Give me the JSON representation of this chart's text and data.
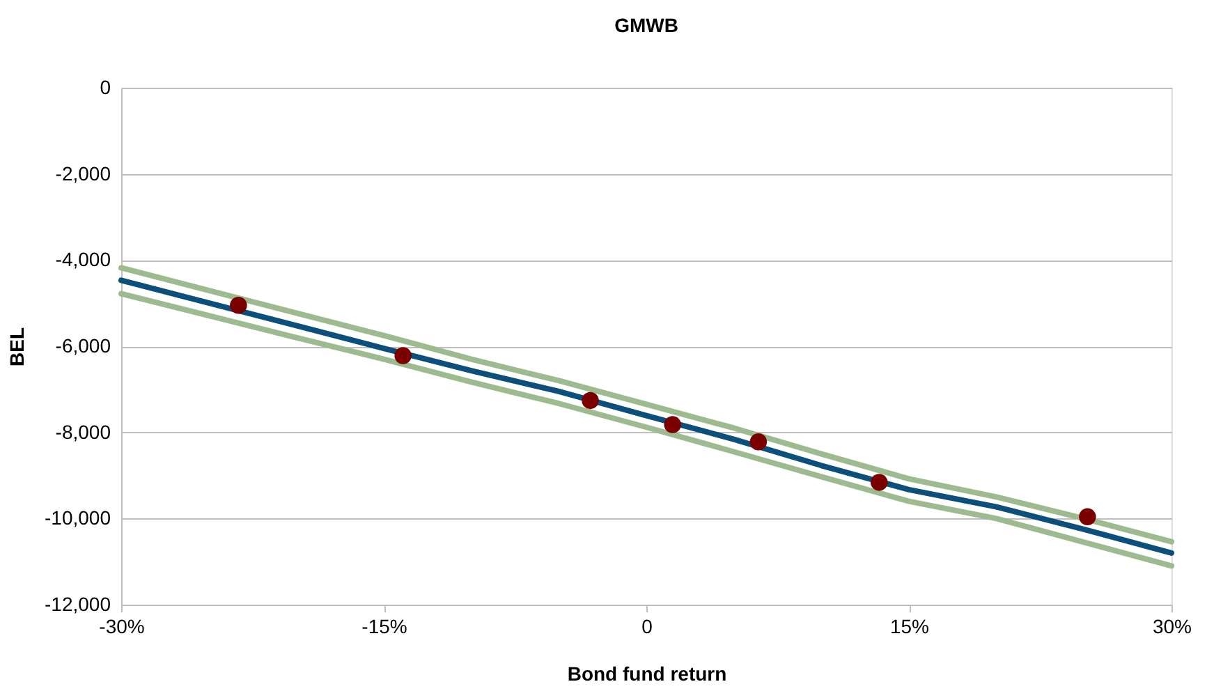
{
  "chart_data": {
    "type": "line",
    "title": "GMWB",
    "xlabel": "Bond fund return",
    "ylabel": "BEL",
    "xlim": [
      -30,
      30
    ],
    "xticks": [
      {
        "value": -30,
        "label": "-30%"
      },
      {
        "value": -15,
        "label": "-15%"
      },
      0,
      {
        "value": 15,
        "label": "15%"
      },
      {
        "value": 30,
        "label": "30%"
      }
    ],
    "ylim": [
      -12000,
      0
    ],
    "yticks": [
      {
        "value": -12000,
        "label": "-12,000"
      },
      {
        "value": -10000,
        "label": "-10,000"
      },
      {
        "value": -8000,
        "label": "-8,000"
      },
      {
        "value": -6000,
        "label": "-6,000"
      },
      {
        "value": -4000,
        "label": "-4,000"
      },
      {
        "value": -2000,
        "label": "-2,000"
      },
      0
    ],
    "grid": "y",
    "line_style": "solid",
    "marker": "none",
    "series": [
      {
        "color": "#9dbb8f",
        "x": [
          -30,
          -20,
          -15,
          -10,
          -5,
          0,
          5,
          10,
          15,
          20,
          25,
          30
        ],
        "values": [
          -4180,
          -5230,
          -5750,
          -6300,
          -6800,
          -7350,
          -7900,
          -8500,
          -9080,
          -9500,
          -10000,
          -10540
        ]
      },
      {
        "color": "#9dbb8f",
        "x": [
          -30,
          -20,
          -15,
          -10,
          -5,
          0,
          5,
          10,
          15,
          20,
          25,
          30
        ],
        "values": [
          -4780,
          -5800,
          -6300,
          -6830,
          -7330,
          -7880,
          -8450,
          -9030,
          -9600,
          -10000,
          -10550,
          -11100
        ]
      },
      {
        "color": "#0b4f7a",
        "x": [
          -30,
          -20,
          -15,
          -10,
          -5,
          0,
          5,
          10,
          15,
          20,
          25,
          30
        ],
        "values": [
          -4470,
          -5520,
          -6050,
          -6570,
          -7050,
          -7610,
          -8160,
          -8770,
          -9330,
          -9730,
          -10250,
          -10800
        ]
      },
      {
        "type": "scatter",
        "color": "#7a0000",
        "marker": "circle",
        "x": [
          -23.3,
          -13.9,
          -3.2,
          1.5,
          6.4,
          13.3,
          25.2
        ],
        "values": [
          -5050,
          -6220,
          -7260,
          -7820,
          -8220,
          -9160,
          -9960
        ]
      }
    ]
  }
}
